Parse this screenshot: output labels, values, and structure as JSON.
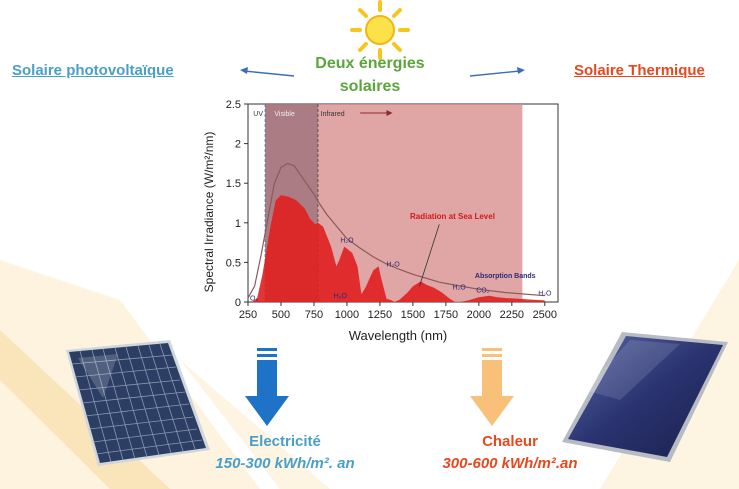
{
  "header": {
    "left_title": "Solaire photovoltaïque",
    "center_title_line1": "Deux énergies",
    "center_title_line2": "solaires",
    "right_title": "Solaire Thermique"
  },
  "icons": {
    "sun": "sun-icon",
    "pv_panel": "photovoltaic-panel",
    "thermal_panel": "thermal-collector-panel",
    "arrow_left": "arrow-left",
    "arrow_right": "arrow-right",
    "down_arrow_blue": "down-arrow-blue",
    "down_arrow_orange": "down-arrow-orange"
  },
  "captions": {
    "left_label": "Electricité",
    "left_value": "150-300 kWh/m². an",
    "right_label": "Chaleur",
    "right_value": "300-600 kWh/m².an"
  },
  "colors": {
    "pv_blue": "#4a9fc8",
    "thermal_red": "#e8481e",
    "title_green": "#5aa63a",
    "arrow_blue": "#1f73c6",
    "arrow_orange": "#f9c07a",
    "band_red": "#d88f8f",
    "curve_red": "#e01f1f"
  },
  "chart_data": {
    "type": "area",
    "ylabel": "Spectral Irradiance (W/m²/nm)",
    "xlabel": "Wavelength (nm)",
    "xlim": [
      250,
      2600
    ],
    "ylim": [
      0,
      2.5
    ],
    "xticks": [
      250,
      500,
      750,
      1000,
      1250,
      1500,
      1750,
      2000,
      2250,
      2500
    ],
    "yticks": [
      0,
      0.5,
      1,
      1.5,
      2,
      2.5
    ],
    "xtick_labels": [
      "250",
      "500",
      "750",
      "1000",
      "1250",
      "1500",
      "1750",
      "2000",
      "2250",
      "2500"
    ],
    "ytick_labels": [
      "0",
      "0.5",
      "1",
      "1.5",
      "2",
      "2.5"
    ],
    "regions": {
      "uv": "UV",
      "visible": "Visible",
      "infrared": "Infrared"
    },
    "annotations": {
      "sea_level": "Radiation at Sea Level",
      "absorption": "Absorption Bands",
      "h2o": "H₂O",
      "co2": "CO₂",
      "o3": "O₃"
    },
    "series": [
      {
        "x": [
          250,
          300,
          350,
          400,
          450,
          500,
          550,
          600,
          650,
          700,
          750,
          800,
          850,
          900,
          950,
          1000,
          1100,
          1200,
          1300,
          1400,
          1500,
          1600,
          1700,
          1800,
          2000,
          2200,
          2500
        ],
        "values": [
          0.05,
          0.2,
          0.6,
          1.05,
          1.5,
          1.7,
          1.75,
          1.72,
          1.6,
          1.48,
          1.36,
          1.22,
          1.1,
          1.0,
          0.9,
          0.8,
          0.68,
          0.57,
          0.48,
          0.41,
          0.35,
          0.3,
          0.25,
          0.22,
          0.16,
          0.12,
          0.08
        ]
      },
      {
        "x": [
          280,
          320,
          360,
          380,
          420,
          460,
          500,
          560,
          620,
          680,
          720,
          760,
          780,
          820,
          880,
          920,
          940,
          980,
          1040,
          1080,
          1110,
          1140,
          1200,
          1240,
          1260,
          1300,
          1340,
          1360,
          1400,
          1460,
          1500,
          1560,
          1600,
          1660,
          1720,
          1780,
          1820,
          1860,
          1920,
          2000,
          2080,
          2140,
          2200,
          2300,
          2400,
          2500
        ],
        "values": [
          0.0,
          0.05,
          0.35,
          0.55,
          0.95,
          1.28,
          1.35,
          1.33,
          1.28,
          1.18,
          1.05,
          0.98,
          1.0,
          0.95,
          0.7,
          0.45,
          0.52,
          0.7,
          0.62,
          0.45,
          0.1,
          0.18,
          0.4,
          0.45,
          0.3,
          0.04,
          0.02,
          0.0,
          0.03,
          0.12,
          0.2,
          0.26,
          0.22,
          0.18,
          0.12,
          0.04,
          0.0,
          0.0,
          0.02,
          0.06,
          0.08,
          0.06,
          0.05,
          0.04,
          0.03,
          0.02
        ]
      }
    ]
  }
}
